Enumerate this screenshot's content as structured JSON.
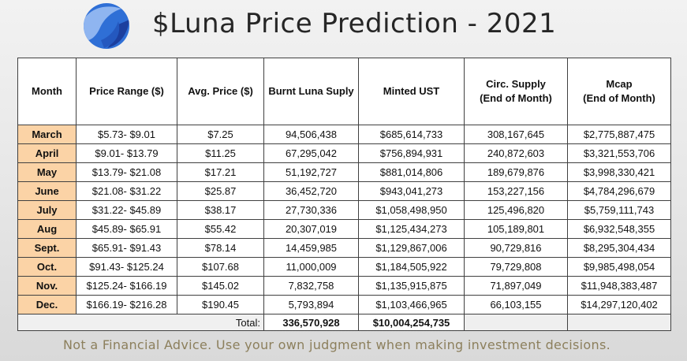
{
  "header": {
    "title": "$Luna Price Prediction - 2021",
    "logo_icon": "terra-luna-logo-icon",
    "logo_colors": [
      "#2f6fd6",
      "#1c3f9e",
      "#8fb5f0"
    ]
  },
  "table": {
    "columns": [
      {
        "line1": "Month",
        "line2": ""
      },
      {
        "line1": "Price Range ($)",
        "line2": ""
      },
      {
        "line1": "Avg. Price ($)",
        "line2": ""
      },
      {
        "line1": "Burnt Luna Suply",
        "line2": ""
      },
      {
        "line1": "Minted UST",
        "line2": ""
      },
      {
        "line1": "Circ. Supply",
        "line2": "(End of Month)"
      },
      {
        "line1": "Mcap",
        "line2": "(End of Month)"
      }
    ],
    "rows": [
      [
        "March",
        "$5.73-  $9.01",
        "$7.25",
        "94,506,438",
        "$685,614,733",
        "308,167,645",
        "$2,775,887,475"
      ],
      [
        "April",
        "$9.01-  $13.79",
        "$11.25",
        "67,295,042",
        "$756,894,931",
        "240,872,603",
        "$3,321,553,706"
      ],
      [
        "May",
        "$13.79-  $21.08",
        "$17.21",
        "51,192,727",
        "$881,014,806",
        "189,679,876",
        "$3,998,330,421"
      ],
      [
        "June",
        "$21.08-  $31.22",
        "$25.87",
        "36,452,720",
        "$943,041,273",
        "153,227,156",
        "$4,784,296,679"
      ],
      [
        "July",
        "$31.22-  $45.89",
        "$38.17",
        "27,730,336",
        "$1,058,498,950",
        "125,496,820",
        "$5,759,111,743"
      ],
      [
        "Aug",
        "$45.89-  $65.91",
        "$55.42",
        "20,307,019",
        "$1,125,434,273",
        "105,189,801",
        "$6,932,548,355"
      ],
      [
        "Sept.",
        "$65.91-  $91.43",
        "$78.14",
        "14,459,985",
        "$1,129,867,006",
        "90,729,816",
        "$8,295,304,434"
      ],
      [
        "Oct.",
        "$91.43-  $125.24",
        "$107.68",
        "11,000,009",
        "$1,184,505,922",
        "79,729,808",
        "$9,985,498,054"
      ],
      [
        "Nov.",
        "$125.24-  $166.19",
        "$145.02",
        "7,832,758",
        "$1,135,915,875",
        "71,897,049",
        "$11,948,383,487"
      ],
      [
        "Dec.",
        "$166.19-  $216.28",
        "$190.45",
        "5,793,894",
        "$1,103,466,965",
        "66,103,155",
        "$14,297,120,402"
      ]
    ],
    "total": {
      "label": "Total:",
      "burnt": "336,570,928",
      "minted": "$10,004,254,735"
    },
    "colors": {
      "month_cell": "#fbd3a6",
      "border": "#404040"
    }
  },
  "footer": {
    "disclaimer": "Not a Financial Advice. Use your own judgment when making investment decisions."
  }
}
